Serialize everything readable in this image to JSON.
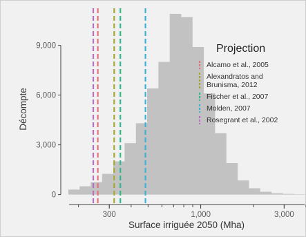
{
  "chart_data": {
    "type": "bar",
    "subtype": "histogram",
    "xlabel": "Surface irriguée 2050 (Mha)",
    "ylabel": "Décompte",
    "x_scale": "log",
    "xlim": [
      150,
      4000
    ],
    "ylim": [
      -600,
      11400
    ],
    "x_ticks": [
      {
        "value": 300,
        "label": "300"
      },
      {
        "value": 1000,
        "label": "1,000"
      },
      {
        "value": 3000,
        "label": "3,000"
      }
    ],
    "y_ticks": [
      {
        "value": 0,
        "label": "0"
      },
      {
        "value": 3000,
        "label": "3,000"
      },
      {
        "value": 6000,
        "label": "6,000"
      },
      {
        "value": 9000,
        "label": "9,000"
      }
    ],
    "grid": false,
    "bar_color": "#c2c2c2",
    "bins": [
      {
        "lo": 175,
        "hi": 203,
        "count": 300
      },
      {
        "lo": 203,
        "hi": 235,
        "count": 500
      },
      {
        "lo": 235,
        "hi": 273,
        "count": 750
      },
      {
        "lo": 273,
        "hi": 316,
        "count": 1250
      },
      {
        "lo": 316,
        "hi": 367,
        "count": 2000
      },
      {
        "lo": 367,
        "hi": 426,
        "count": 3100
      },
      {
        "lo": 426,
        "hi": 494,
        "count": 4300
      },
      {
        "lo": 494,
        "hi": 573,
        "count": 6400
      },
      {
        "lo": 573,
        "hi": 665,
        "count": 8000
      },
      {
        "lo": 665,
        "hi": 771,
        "count": 10900
      },
      {
        "lo": 771,
        "hi": 895,
        "count": 10700
      },
      {
        "lo": 895,
        "hi": 1038,
        "count": 8900
      },
      {
        "lo": 1038,
        "hi": 1204,
        "count": 6100
      },
      {
        "lo": 1204,
        "hi": 1397,
        "count": 3700
      },
      {
        "lo": 1397,
        "hi": 1621,
        "count": 1900
      },
      {
        "lo": 1621,
        "hi": 1881,
        "count": 850
      },
      {
        "lo": 1881,
        "hi": 2182,
        "count": 380
      },
      {
        "lo": 2182,
        "hi": 2532,
        "count": 170
      },
      {
        "lo": 2532,
        "hi": 2937,
        "count": 80
      },
      {
        "lo": 2937,
        "hi": 3408,
        "count": 40
      },
      {
        "lo": 3408,
        "hi": 3954,
        "count": 20
      }
    ],
    "legend": {
      "title": "Projection",
      "placement": "right",
      "entries": [
        {
          "label_lines": [
            "Alcamo et al., 2005"
          ],
          "color": "#e8707a",
          "x": 258
        },
        {
          "label_lines": [
            "Alexandratos and",
            "Brunisma, 2012"
          ],
          "color": "#a6a832",
          "x": 320
        },
        {
          "label_lines": [
            "Fischer et al., 2007"
          ],
          "color": "#2eb88f",
          "x": 347
        },
        {
          "label_lines": [
            "Molden, 2007"
          ],
          "color": "#3bb3d9",
          "x": 483
        },
        {
          "label_lines": [
            "Rosegrant et al., 2002"
          ],
          "color": "#b86fbf",
          "x": 243
        }
      ]
    },
    "reference_lines": [
      {
        "x": 243,
        "color": "#b86fbf"
      },
      {
        "x": 258,
        "color": "#e8707a"
      },
      {
        "x": 320,
        "color": "#a6a832"
      },
      {
        "x": 347,
        "color": "#2eb88f"
      },
      {
        "x": 483,
        "color": "#3bb3d9"
      }
    ]
  }
}
